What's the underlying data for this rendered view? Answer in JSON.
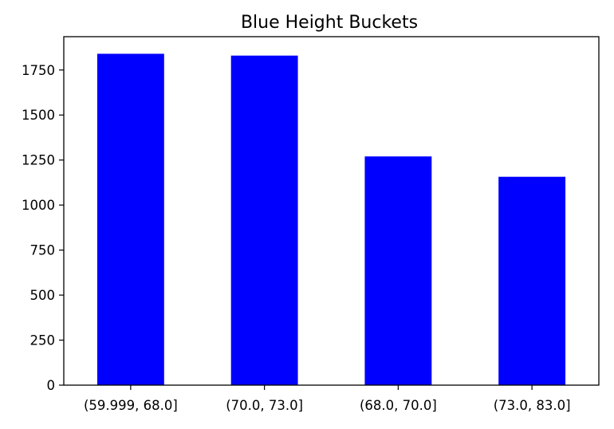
{
  "chart_data": {
    "type": "bar",
    "title": "Blue Height Buckets",
    "xlabel": "",
    "ylabel": "",
    "categories": [
      "(59.999, 68.0]",
      "(70.0, 73.0]",
      "(68.0, 70.0]",
      "(73.0, 83.0]"
    ],
    "values": [
      1840,
      1830,
      1270,
      1157
    ],
    "ylim": [
      0,
      1935
    ],
    "yticks": [
      0,
      250,
      500,
      750,
      1000,
      1250,
      1500,
      1750
    ],
    "grid": false,
    "legend": "none",
    "bar_color": "#0000ff"
  }
}
